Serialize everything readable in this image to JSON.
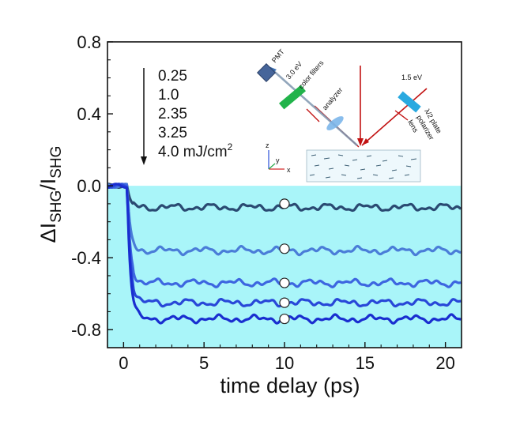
{
  "chart_data": {
    "type": "line",
    "title": "",
    "xlabel": "time delay  (ps)",
    "ylabel": {
      "main": "ΔI",
      "sub1": "SHG",
      "slash": "/I",
      "sub2": "SHG"
    },
    "xlim": [
      -1,
      21
    ],
    "ylim": [
      -0.9,
      0.8
    ],
    "xticks": [
      0,
      5,
      10,
      15,
      20
    ],
    "xtick_labels": [
      "0",
      "5",
      "10",
      "15",
      "20"
    ],
    "yticks": [
      0.8,
      0.4,
      0.0,
      -0.4,
      -0.8
    ],
    "ytick_labels": [
      "0.8",
      "0.4",
      "0.0",
      "-0.4",
      "-0.8"
    ],
    "shaded_region": {
      "y_from": -0.9,
      "y_to": 0.0,
      "color": "#a9f5f9"
    },
    "legend": {
      "entries": [
        "0.25",
        "1.0",
        "2.35",
        "3.25",
        "4.0 mJ/cm"
      ],
      "unit_superscript": "2",
      "arrow": "down"
    },
    "series": [
      {
        "name": "0.25",
        "plateau": -0.12,
        "color": "#2a4a72"
      },
      {
        "name": "1.0",
        "plateau": -0.36,
        "color": "#4a7dd8"
      },
      {
        "name": "2.35",
        "plateau": -0.54,
        "color": "#3d66e0"
      },
      {
        "name": "3.25",
        "plateau": -0.65,
        "color": "#2847d8"
      },
      {
        "name": "4.0",
        "plateau": -0.74,
        "color": "#1a2ed0"
      }
    ],
    "markers": {
      "x": 10,
      "y": [
        -0.1,
        -0.35,
        -0.54,
        -0.65,
        -0.74
      ]
    },
    "inset": {
      "labels": {
        "pmt": "PMT",
        "energy_probe": "3.0 eV",
        "color_filters": "color filters",
        "analyzer": "analyzer",
        "energy_pump": "1.5 eV",
        "half_wave_plate": "λ/2 plate",
        "polarizer": "polarizer",
        "lens": "lens",
        "axis_z": "z",
        "axis_x": "x",
        "axis_y": "y"
      }
    }
  }
}
